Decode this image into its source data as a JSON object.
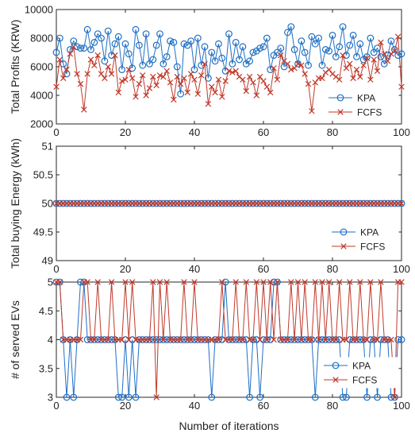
{
  "colors": {
    "kpa": "#1f6fc4",
    "fcfs": "#c0392b"
  },
  "chart_data": [
    {
      "type": "line",
      "ylabel": "Total Profits (KRW)",
      "xlim": [
        0,
        100
      ],
      "ylim": [
        2000,
        10000
      ],
      "xticks": [
        0,
        20,
        40,
        60,
        80,
        100
      ],
      "yticks": [
        2000,
        4000,
        6000,
        8000,
        10000
      ],
      "legend": "bottom-right",
      "x": [
        0,
        1,
        2,
        3,
        4,
        5,
        6,
        7,
        8,
        9,
        10,
        11,
        12,
        13,
        14,
        15,
        16,
        17,
        18,
        19,
        20,
        21,
        22,
        23,
        24,
        25,
        26,
        27,
        28,
        29,
        30,
        31,
        32,
        33,
        34,
        35,
        36,
        37,
        38,
        39,
        40,
        41,
        42,
        43,
        44,
        45,
        46,
        47,
        48,
        49,
        50,
        51,
        52,
        53,
        54,
        55,
        56,
        57,
        58,
        59,
        60,
        61,
        62,
        63,
        64,
        65,
        66,
        67,
        68,
        69,
        70,
        71,
        72,
        73,
        74,
        75,
        76,
        77,
        78,
        79,
        80,
        81,
        82,
        83,
        84,
        85,
        86,
        87,
        88,
        89,
        90,
        91,
        92,
        93,
        94,
        95,
        96,
        97,
        98,
        99,
        100
      ],
      "series": [
        {
          "name": "KPA",
          "marker": "circle",
          "values": [
            7000,
            8000,
            6200,
            5500,
            7200,
            7800,
            7400,
            7300,
            7300,
            8600,
            7200,
            7700,
            8300,
            8000,
            6400,
            8500,
            6800,
            7600,
            8100,
            5800,
            7600,
            6900,
            5900,
            8600,
            7500,
            6100,
            8300,
            6200,
            6500,
            7500,
            8300,
            6200,
            6700,
            7800,
            7700,
            6000,
            4100,
            7600,
            7500,
            7800,
            5800,
            8000,
            6100,
            7400,
            5200,
            7000,
            6400,
            7600,
            6600,
            5700,
            8300,
            6200,
            7700,
            6500,
            7400,
            6200,
            6400,
            7000,
            7100,
            7300,
            7400,
            8000,
            5800,
            6800,
            7000,
            7300,
            6000,
            8400,
            8800,
            7200,
            6200,
            7800,
            7000,
            6100,
            8100,
            7600,
            8000,
            6100,
            7200,
            7100,
            8200,
            6700,
            7400,
            8800,
            6800,
            7500,
            8200,
            6700,
            7600,
            6500,
            6700,
            8000,
            7000,
            7300,
            6700,
            6200,
            6800,
            7800,
            7200,
            6800,
            6900
          ]
        },
        {
          "name": "FCFS",
          "marker": "x",
          "values": [
            4600,
            6500,
            5200,
            5800,
            6900,
            7400,
            5500,
            4800,
            3000,
            5500,
            6500,
            6100,
            6800,
            5500,
            5200,
            6000,
            5500,
            6800,
            4200,
            5000,
            5100,
            5800,
            5200,
            3900,
            4800,
            5400,
            4000,
            4500,
            5300,
            4700,
            5400,
            5300,
            5700,
            4900,
            3700,
            5300,
            4800,
            5200,
            4200,
            5500,
            5100,
            4100,
            5400,
            6200,
            3400,
            4600,
            4200,
            5100,
            3900,
            5000,
            5700,
            5600,
            5700,
            5300,
            5100,
            4300,
            5300,
            4900,
            4000,
            5300,
            5000,
            4600,
            4200,
            5900,
            5100,
            6800,
            6400,
            6200,
            5800,
            5900,
            6200,
            6100,
            5500,
            4800,
            2900,
            4900,
            5200,
            5200,
            5600,
            5800,
            5500,
            5300,
            5100,
            6800,
            5900,
            6200,
            5200,
            5800,
            5300,
            6100,
            6600,
            5100,
            6500,
            5700,
            7700,
            6900,
            6400,
            6900,
            7100,
            8100,
            4600
          ]
        }
      ]
    },
    {
      "type": "line",
      "ylabel": "Total buying Energy (kWh)",
      "xlim": [
        0,
        100
      ],
      "ylim": [
        49,
        51
      ],
      "xticks": [
        0,
        20,
        40,
        60,
        80,
        100
      ],
      "yticks": [
        49,
        49.5,
        50,
        50.5,
        51
      ],
      "legend": "bottom-right",
      "x_start": 0,
      "x_end": 100,
      "series": [
        {
          "name": "KPA",
          "marker": "circle",
          "constant": 50
        },
        {
          "name": "FCFS",
          "marker": "x",
          "constant": 50
        }
      ]
    },
    {
      "type": "line",
      "xlabel": "Number of iterations",
      "ylabel": "# of served EVs",
      "xlim": [
        0,
        100
      ],
      "ylim": [
        3,
        5
      ],
      "xticks": [
        0,
        20,
        40,
        60,
        80,
        100
      ],
      "yticks": [
        3,
        3.5,
        4,
        4.5,
        5
      ],
      "legend": "bottom-right",
      "x": [
        0,
        1,
        2,
        3,
        4,
        5,
        6,
        7,
        8,
        9,
        10,
        11,
        12,
        13,
        14,
        15,
        16,
        17,
        18,
        19,
        20,
        21,
        22,
        23,
        24,
        25,
        26,
        27,
        28,
        29,
        30,
        31,
        32,
        33,
        34,
        35,
        36,
        37,
        38,
        39,
        40,
        41,
        42,
        43,
        44,
        45,
        46,
        47,
        48,
        49,
        50,
        51,
        52,
        53,
        54,
        55,
        56,
        57,
        58,
        59,
        60,
        61,
        62,
        63,
        64,
        65,
        66,
        67,
        68,
        69,
        70,
        71,
        72,
        73,
        74,
        75,
        76,
        77,
        78,
        79,
        80,
        81,
        82,
        83,
        84,
        85,
        86,
        87,
        88,
        89,
        90,
        91,
        92,
        93,
        94,
        95,
        96,
        97,
        98,
        99,
        100
      ],
      "series": [
        {
          "name": "KPA",
          "marker": "circle",
          "values": [
            5,
            5,
            4,
            3,
            4,
            3,
            4,
            5,
            5,
            4,
            4,
            4,
            4,
            4,
            4,
            4,
            4,
            4,
            3,
            3,
            4,
            3,
            4,
            3,
            4,
            4,
            4,
            4,
            4,
            4,
            4,
            4,
            4,
            4,
            4,
            4,
            4,
            4,
            4,
            4,
            4,
            4,
            4,
            4,
            4,
            3,
            4,
            4,
            4,
            5,
            4,
            4,
            4,
            4,
            4,
            4,
            3,
            4,
            4,
            3,
            4,
            4,
            4,
            5,
            5,
            4,
            4,
            4,
            4,
            4,
            4,
            4,
            4,
            4,
            4,
            3,
            4,
            4,
            4,
            4,
            4,
            4,
            4,
            3,
            3,
            4,
            4,
            4,
            4,
            4,
            3,
            4,
            4,
            3,
            4,
            4,
            4,
            3,
            3,
            4,
            4
          ]
        },
        {
          "name": "FCFS",
          "marker": "x",
          "values": [
            5,
            5,
            4,
            4,
            4,
            4,
            4,
            4,
            5,
            5,
            4,
            4,
            5,
            4,
            4,
            4,
            5,
            4,
            4,
            4,
            5,
            4,
            5,
            4,
            4,
            4,
            4,
            4,
            5,
            3,
            5,
            4,
            5,
            4,
            4,
            4,
            4,
            5,
            4,
            4,
            5,
            4,
            4,
            4,
            4,
            4,
            4,
            4,
            5,
            4,
            4,
            4,
            5,
            4,
            4,
            5,
            4,
            4,
            5,
            4,
            5,
            4,
            5,
            4,
            5,
            4,
            4,
            4,
            5,
            4,
            5,
            4,
            5,
            4,
            4,
            5,
            4,
            5,
            4,
            5,
            4,
            4,
            5,
            4,
            4,
            5,
            4,
            4,
            5,
            4,
            4,
            5,
            4,
            4,
            5,
            4,
            4,
            4,
            3,
            5,
            5
          ]
        }
      ]
    }
  ]
}
